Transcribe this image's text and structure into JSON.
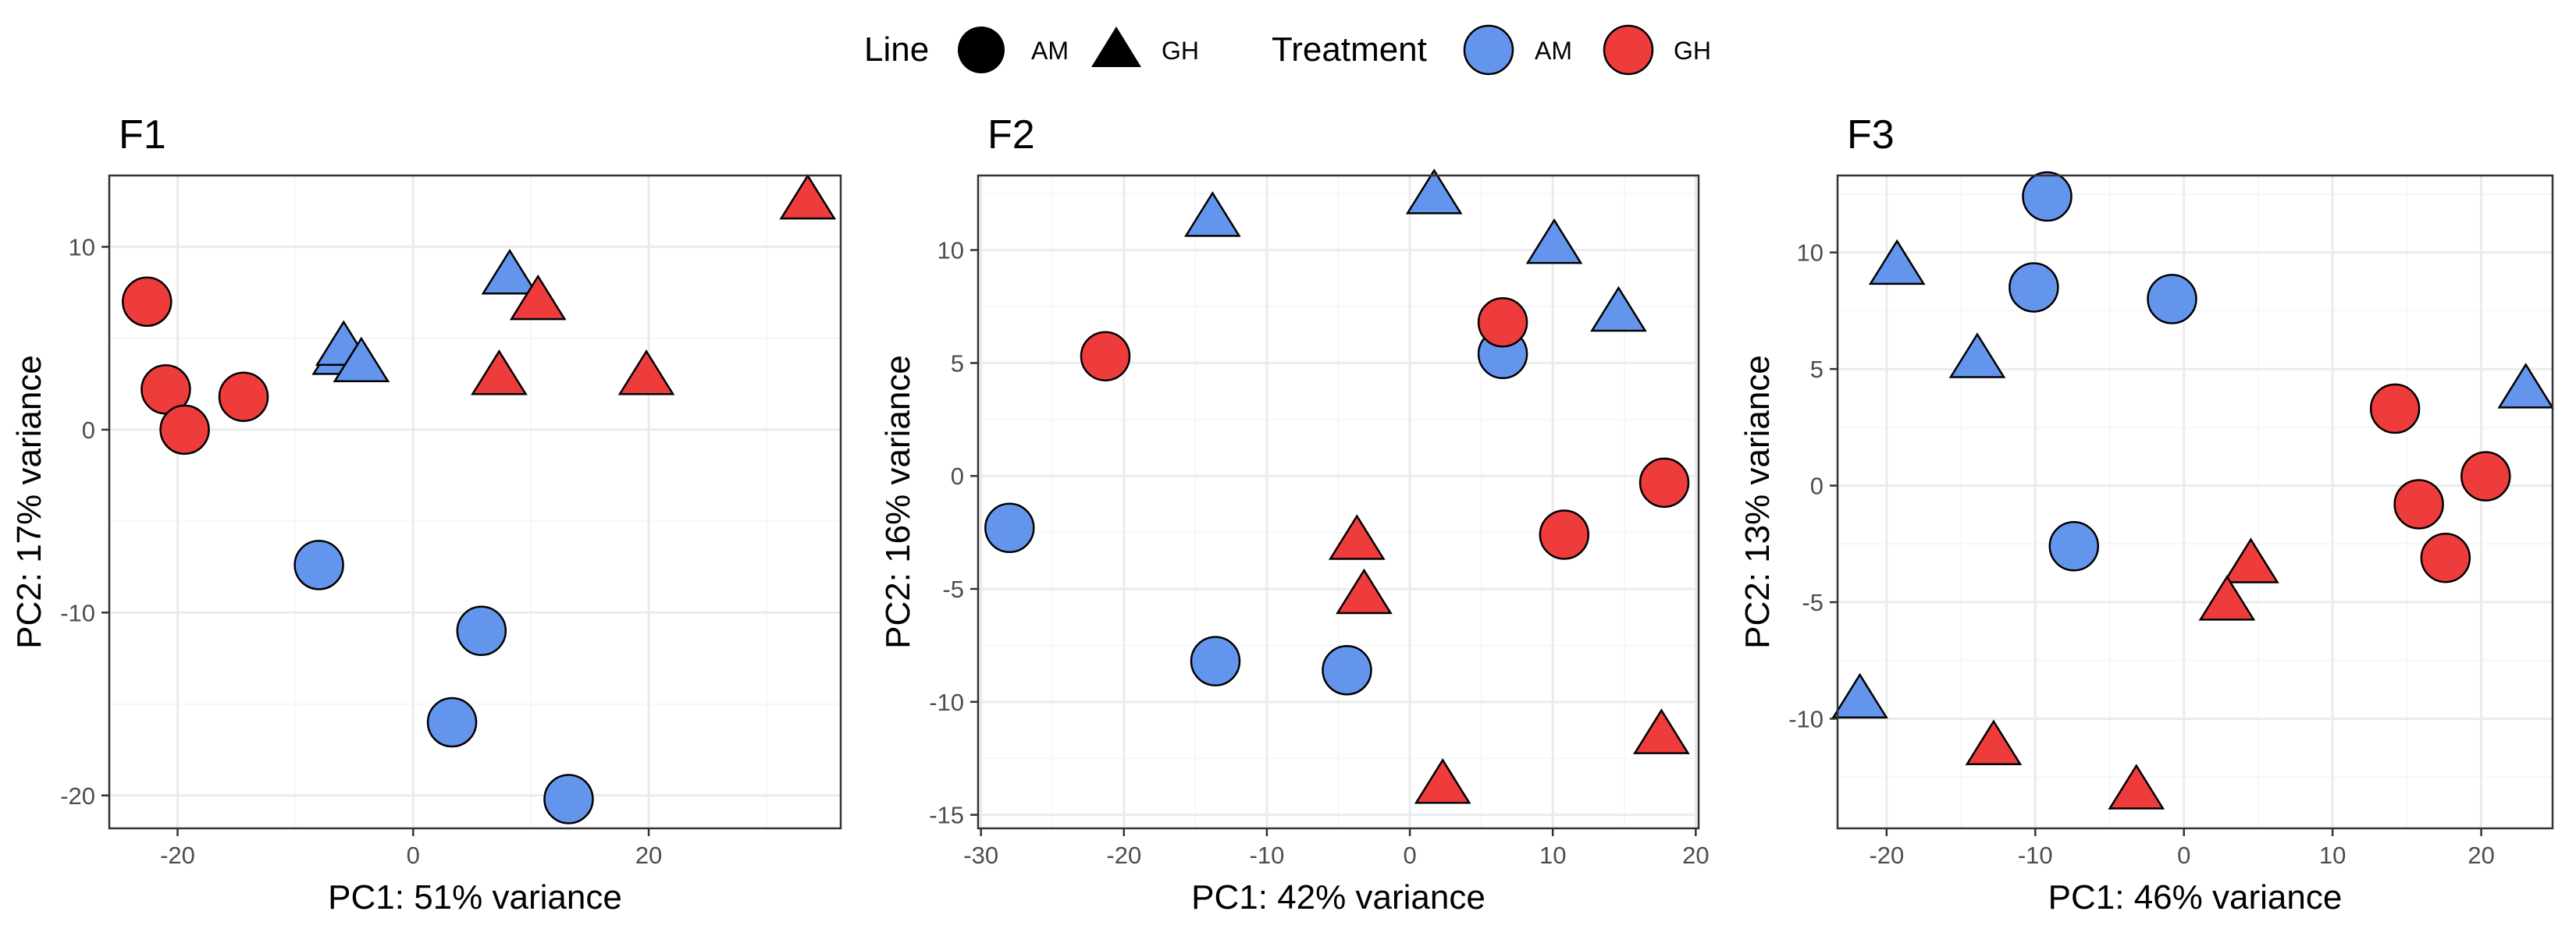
{
  "legend": {
    "line_title": "Line",
    "line_items": [
      {
        "label": "AM",
        "shape": "circle"
      },
      {
        "label": "GH",
        "shape": "triangle"
      }
    ],
    "treatment_title": "Treatment",
    "treatment_items": [
      {
        "label": "AM",
        "color": "#6495ED"
      },
      {
        "label": "GH",
        "color": "#EE3B3B"
      }
    ]
  },
  "colors": {
    "AM": "#6495ED",
    "GH": "#EE3B3B",
    "grid": "#ebebeb",
    "border": "#333333"
  },
  "chart_data": [
    {
      "type": "scatter",
      "title": "F1",
      "xlabel": "PC1: 51% variance",
      "ylabel": "PC2: 17% variance",
      "xlim": [
        -25.8,
        36.3
      ],
      "ylim": [
        -21.8,
        13.9
      ],
      "xticks": [
        -20,
        0,
        20
      ],
      "yticks": [
        -20,
        -10,
        0,
        10
      ],
      "xtick_labels": [
        "-20",
        "0",
        "20"
      ],
      "ytick_labels": [
        "-20",
        "-10",
        "0",
        "10"
      ],
      "points": [
        {
          "x": -22.6,
          "y": 7.0,
          "line": "AM",
          "treatment": "GH"
        },
        {
          "x": -21.0,
          "y": 2.2,
          "line": "AM",
          "treatment": "GH"
        },
        {
          "x": -19.4,
          "y": 0.0,
          "line": "AM",
          "treatment": "GH"
        },
        {
          "x": -14.4,
          "y": 1.8,
          "line": "AM",
          "treatment": "GH"
        },
        {
          "x": -8.0,
          "y": -7.4,
          "line": "AM",
          "treatment": "AM"
        },
        {
          "x": 5.8,
          "y": -11.0,
          "line": "AM",
          "treatment": "AM"
        },
        {
          "x": 3.3,
          "y": -16.0,
          "line": "AM",
          "treatment": "AM"
        },
        {
          "x": 13.2,
          "y": -20.2,
          "line": "AM",
          "treatment": "AM"
        },
        {
          "x": -6.2,
          "y": 4.0,
          "line": "GH",
          "treatment": "AM"
        },
        {
          "x": -5.9,
          "y": 4.5,
          "line": "GH",
          "treatment": "AM"
        },
        {
          "x": -4.4,
          "y": 3.6,
          "line": "GH",
          "treatment": "AM"
        },
        {
          "x": 8.2,
          "y": 8.4,
          "line": "GH",
          "treatment": "AM"
        },
        {
          "x": 10.6,
          "y": 7.0,
          "line": "GH",
          "treatment": "GH"
        },
        {
          "x": 7.3,
          "y": 2.9,
          "line": "GH",
          "treatment": "GH"
        },
        {
          "x": 19.8,
          "y": 2.9,
          "line": "GH",
          "treatment": "GH"
        },
        {
          "x": 33.5,
          "y": 12.5,
          "line": "GH",
          "treatment": "GH"
        }
      ]
    },
    {
      "type": "scatter",
      "title": "F2",
      "xlabel": "PC1: 42% variance",
      "ylabel": "PC2: 16% variance",
      "xlim": [
        -30.2,
        20.2
      ],
      "ylim": [
        -15.6,
        13.3
      ],
      "xticks": [
        -30,
        -20,
        -10,
        0,
        10,
        20
      ],
      "yticks": [
        -15,
        -10,
        -5,
        0,
        5,
        10
      ],
      "xtick_labels": [
        "-30",
        "-20",
        "-10",
        "0",
        "10",
        "20"
      ],
      "ytick_labels": [
        "-15",
        "-10",
        "-5",
        "0",
        "5",
        "10"
      ],
      "points": [
        {
          "x": -21.3,
          "y": 5.3,
          "line": "AM",
          "treatment": "GH"
        },
        {
          "x": -28.0,
          "y": -2.3,
          "line": "AM",
          "treatment": "AM"
        },
        {
          "x": -13.6,
          "y": -8.2,
          "line": "AM",
          "treatment": "AM"
        },
        {
          "x": -4.4,
          "y": -8.6,
          "line": "AM",
          "treatment": "AM"
        },
        {
          "x": 6.5,
          "y": 5.4,
          "line": "AM",
          "treatment": "AM"
        },
        {
          "x": 6.5,
          "y": 6.8,
          "line": "AM",
          "treatment": "GH"
        },
        {
          "x": 17.8,
          "y": -0.3,
          "line": "AM",
          "treatment": "GH"
        },
        {
          "x": 10.8,
          "y": -2.6,
          "line": "AM",
          "treatment": "GH"
        },
        {
          "x": -13.8,
          "y": 11.4,
          "line": "GH",
          "treatment": "AM"
        },
        {
          "x": 1.7,
          "y": 12.4,
          "line": "GH",
          "treatment": "AM"
        },
        {
          "x": 10.1,
          "y": 10.2,
          "line": "GH",
          "treatment": "AM"
        },
        {
          "x": 14.6,
          "y": 7.2,
          "line": "GH",
          "treatment": "AM"
        },
        {
          "x": -3.7,
          "y": -2.9,
          "line": "GH",
          "treatment": "GH"
        },
        {
          "x": -3.2,
          "y": -5.3,
          "line": "GH",
          "treatment": "GH"
        },
        {
          "x": 2.3,
          "y": -13.7,
          "line": "GH",
          "treatment": "GH"
        },
        {
          "x": 17.6,
          "y": -11.5,
          "line": "GH",
          "treatment": "GH"
        }
      ]
    },
    {
      "type": "scatter",
      "title": "F3",
      "xlabel": "PC1: 46% variance",
      "ylabel": "PC2: 13% variance",
      "xlim": [
        -23.3,
        24.8
      ],
      "ylim": [
        -14.7,
        13.3
      ],
      "xticks": [
        -20,
        -10,
        0,
        10,
        20
      ],
      "yticks": [
        -10,
        -5,
        0,
        5,
        10
      ],
      "xtick_labels": [
        "-20",
        "-10",
        "0",
        "10",
        "20"
      ],
      "ytick_labels": [
        "-10",
        "-5",
        "0",
        "5",
        "10"
      ],
      "points": [
        {
          "x": -9.2,
          "y": 12.4,
          "line": "AM",
          "treatment": "AM"
        },
        {
          "x": -10.1,
          "y": 8.5,
          "line": "AM",
          "treatment": "AM"
        },
        {
          "x": -0.8,
          "y": 8.0,
          "line": "AM",
          "treatment": "AM"
        },
        {
          "x": -7.4,
          "y": -2.6,
          "line": "AM",
          "treatment": "AM"
        },
        {
          "x": 14.2,
          "y": 3.3,
          "line": "AM",
          "treatment": "GH"
        },
        {
          "x": 20.3,
          "y": 0.4,
          "line": "AM",
          "treatment": "GH"
        },
        {
          "x": 15.8,
          "y": -0.8,
          "line": "AM",
          "treatment": "GH"
        },
        {
          "x": 17.6,
          "y": -3.1,
          "line": "AM",
          "treatment": "GH"
        },
        {
          "x": -19.3,
          "y": 9.4,
          "line": "GH",
          "treatment": "AM"
        },
        {
          "x": -13.9,
          "y": 5.4,
          "line": "GH",
          "treatment": "AM"
        },
        {
          "x": 23.0,
          "y": 4.1,
          "line": "GH",
          "treatment": "AM"
        },
        {
          "x": -21.8,
          "y": -9.2,
          "line": "GH",
          "treatment": "AM"
        },
        {
          "x": 4.5,
          "y": -3.4,
          "line": "GH",
          "treatment": "GH"
        },
        {
          "x": 2.9,
          "y": -5.0,
          "line": "GH",
          "treatment": "GH"
        },
        {
          "x": -12.8,
          "y": -11.2,
          "line": "GH",
          "treatment": "GH"
        },
        {
          "x": -3.2,
          "y": -13.1,
          "line": "GH",
          "treatment": "GH"
        }
      ]
    }
  ]
}
